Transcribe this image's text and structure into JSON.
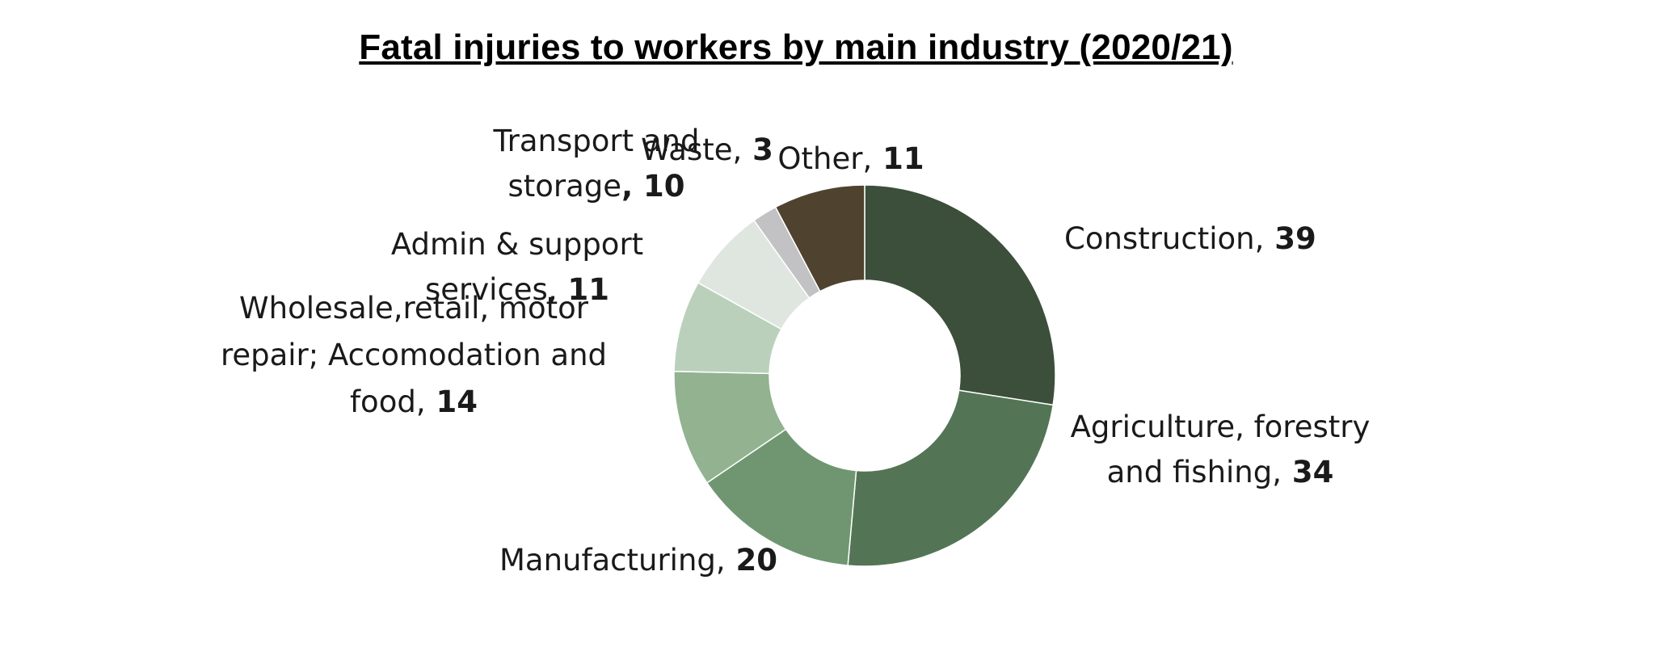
{
  "chart_data": {
    "type": "pie",
    "title": "Fatal injuries to workers by main industry (2020/21)",
    "donut": true,
    "slices": [
      {
        "label_lines": [
          "Construction,"
        ],
        "label": "Construction",
        "value": 39,
        "color": "#3b4f3b"
      },
      {
        "label_lines": [
          "Agriculture, forestry",
          "and fishing,"
        ],
        "label": "Agriculture, forestry and fishing",
        "value": 34,
        "color": "#537555"
      },
      {
        "label_lines": [
          "Manufacturing,"
        ],
        "label": "Manufacturing",
        "value": 20,
        "color": "#6f9670"
      },
      {
        "label_lines": [
          "Wholesale,retail, motor",
          "repair; Accomodation and",
          "food,"
        ],
        "label": "Wholesale,retail, motor repair; Accomodation and food",
        "value": 14,
        "color": "#92b290"
      },
      {
        "label_lines": [
          "Admin & support",
          "services,"
        ],
        "label": "Admin & support services",
        "value": 11,
        "color": "#bad0bb"
      },
      {
        "label_lines": [
          "Transport and",
          "storage"
        ],
        "label": "Transport and storage",
        "value": 10,
        "color": "#dfe6e0",
        "value_prefix": ", "
      },
      {
        "label_lines": [
          "Waste,"
        ],
        "label": "Waste",
        "value": 3,
        "color": "#c2c2c4"
      },
      {
        "label_lines": [
          "Other,"
        ],
        "label": "Other",
        "value": 11,
        "color": "#4f432f"
      }
    ]
  }
}
